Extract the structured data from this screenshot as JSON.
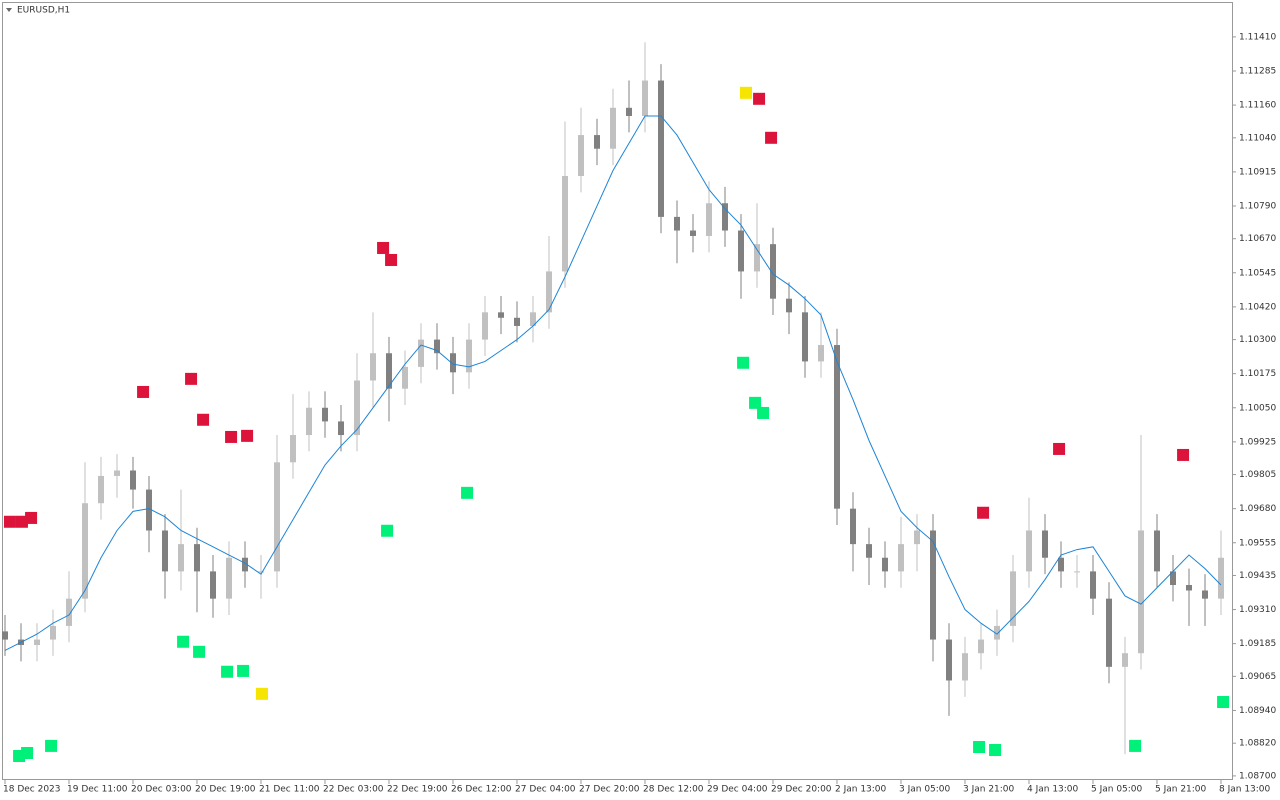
{
  "chart_data": {
    "type": "candlestick",
    "title": "EURUSD,H1",
    "categories": [
      "18 Dec 2023",
      null,
      null,
      null,
      "19 Dec 11:00",
      null,
      null,
      null,
      "20 Dec 03:00",
      null,
      null,
      null,
      "20 Dec 19:00",
      null,
      null,
      null,
      "21 Dec 11:00",
      null,
      null,
      null,
      "22 Dec 03:00",
      null,
      null,
      null,
      "22 Dec 19:00",
      null,
      null,
      null,
      "26 Dec 12:00",
      null,
      null,
      null,
      "27 Dec 04:00",
      null,
      null,
      null,
      "27 Dec 20:00",
      null,
      null,
      null,
      "28 Dec 12:00",
      null,
      null,
      null,
      "29 Dec 04:00",
      null,
      null,
      null,
      "29 Dec 20:00",
      null,
      null,
      null,
      "2 Jan 13:00",
      null,
      null,
      null,
      "3 Jan 05:00",
      null,
      null,
      null,
      "3 Jan 21:00",
      null,
      null,
      null,
      "4 Jan 13:00",
      null,
      null,
      null,
      "5 Jan 05:00",
      null,
      null,
      null,
      "5 Jan 21:00",
      null,
      null,
      null,
      "8 Jan 13:00"
    ],
    "open": [
      1.0923,
      1.092,
      1.0918,
      1.092,
      1.0925,
      1.0935,
      1.097,
      1.098,
      1.0982,
      1.0975,
      1.096,
      1.0945,
      1.0955,
      1.0945,
      1.0935,
      1.095,
      1.0945,
      1.0945,
      1.0985,
      1.0995,
      1.1005,
      1.1,
      1.0995,
      1.1015,
      1.1025,
      1.1012,
      1.102,
      1.103,
      1.1025,
      1.1018,
      1.103,
      1.104,
      1.1038,
      1.1035,
      1.104,
      1.1055,
      1.109,
      1.1105,
      1.11,
      1.1115,
      1.1112,
      1.1125,
      1.1075,
      1.107,
      1.1068,
      1.108,
      1.107,
      1.1055,
      1.1065,
      1.1045,
      1.104,
      1.1022,
      1.1028,
      1.0968,
      1.0955,
      1.095,
      1.0945,
      1.0955,
      1.096,
      1.092,
      1.0905,
      1.0915,
      1.092,
      1.0925,
      1.0945,
      1.096,
      1.095,
      1.0945,
      1.0945,
      1.0935,
      1.091,
      1.0915,
      1.096,
      1.0945,
      1.094,
      1.0938,
      1.0935
    ],
    "high": [
      1.0929,
      1.0926,
      1.0926,
      1.0931,
      1.0945,
      1.0985,
      1.0987,
      1.0988,
      1.0987,
      1.098,
      1.0966,
      1.0975,
      1.0961,
      1.0951,
      1.0956,
      1.0956,
      1.0951,
      1.0995,
      1.101,
      1.1011,
      1.1011,
      1.1006,
      1.1025,
      1.104,
      1.1031,
      1.1026,
      1.1036,
      1.1036,
      1.1031,
      1.1036,
      1.1046,
      1.1046,
      1.1044,
      1.1046,
      1.1068,
      1.111,
      1.1115,
      1.1111,
      1.1122,
      1.1125,
      1.1139,
      1.1131,
      1.1081,
      1.1076,
      1.1088,
      1.1086,
      1.1076,
      1.108,
      1.1071,
      1.1051,
      1.1046,
      1.104,
      1.1034,
      1.0974,
      1.0961,
      1.0956,
      1.0965,
      1.0966,
      1.0966,
      1.0926,
      1.0921,
      1.0926,
      1.0931,
      1.0951,
      1.0972,
      1.0966,
      1.0956,
      1.0951,
      1.0951,
      1.0941,
      1.0921,
      1.0995,
      1.0966,
      1.0951,
      1.0946,
      1.0944,
      1.096
    ],
    "low": [
      1.0914,
      1.0912,
      1.0912,
      1.0914,
      1.0919,
      1.093,
      1.0964,
      1.0972,
      1.0968,
      1.0952,
      1.0935,
      1.0938,
      1.093,
      1.0928,
      1.0929,
      1.0939,
      1.0935,
      1.0939,
      1.0979,
      1.0989,
      1.0994,
      1.0989,
      1.0989,
      1.1005,
      1.1,
      1.1006,
      1.1014,
      1.1019,
      1.101,
      1.1012,
      1.1024,
      1.1032,
      1.1029,
      1.1029,
      1.1034,
      1.1049,
      1.1084,
      1.1094,
      1.1094,
      1.1106,
      1.1106,
      1.1069,
      1.1058,
      1.1062,
      1.1062,
      1.1064,
      1.1045,
      1.1049,
      1.1039,
      1.1032,
      1.1016,
      1.1016,
      1.0962,
      1.0945,
      1.094,
      1.0939,
      1.0939,
      1.0945,
      1.0912,
      1.0892,
      1.0899,
      1.0909,
      1.0914,
      1.0919,
      1.0939,
      1.0944,
      1.0939,
      1.0939,
      1.0929,
      1.0904,
      1.0878,
      1.0909,
      1.0939,
      1.0934,
      1.0925,
      1.0925,
      1.0929
    ],
    "close": [
      1.092,
      1.0918,
      1.092,
      1.0925,
      1.0935,
      1.097,
      1.098,
      1.0982,
      1.0975,
      1.096,
      1.0945,
      1.0955,
      1.0945,
      1.0935,
      1.095,
      1.0945,
      1.0945,
      1.0985,
      1.0995,
      1.1005,
      1.1,
      1.0995,
      1.1015,
      1.1025,
      1.1012,
      1.102,
      1.103,
      1.1025,
      1.1018,
      1.103,
      1.104,
      1.1038,
      1.1035,
      1.104,
      1.1055,
      1.109,
      1.1105,
      1.11,
      1.1115,
      1.1112,
      1.1125,
      1.1075,
      1.107,
      1.1068,
      1.108,
      1.107,
      1.1055,
      1.1065,
      1.1045,
      1.104,
      1.1022,
      1.1028,
      1.0968,
      1.0955,
      1.095,
      1.0945,
      1.0955,
      1.096,
      1.092,
      1.0905,
      1.0915,
      1.092,
      1.0925,
      1.0945,
      1.096,
      1.095,
      1.0945,
      1.0945,
      1.0935,
      1.091,
      1.0915,
      1.096,
      1.0945,
      1.094,
      1.0938,
      1.0935,
      1.095
    ],
    "up_color": "#c0c0c0",
    "down_color": "#808080",
    "ma": {
      "color": "#1e84d6",
      "values": [
        1.0916,
        1.0919,
        1.0922,
        1.0926,
        1.0929,
        1.0938,
        1.095,
        1.096,
        1.0967,
        1.0968,
        1.0965,
        1.096,
        1.0957,
        1.0954,
        1.0951,
        1.0948,
        1.0944,
        1.0954,
        1.0964,
        1.0974,
        1.0984,
        1.0991,
        1.0997,
        1.1005,
        1.1013,
        1.1021,
        1.1028,
        1.1026,
        1.1021,
        1.102,
        1.1022,
        1.1026,
        1.103,
        1.1035,
        1.1041,
        1.1053,
        1.1066,
        1.1079,
        1.1092,
        1.1102,
        1.1112,
        1.1112,
        1.1105,
        1.1095,
        1.1085,
        1.1078,
        1.1072,
        1.1063,
        1.1054,
        1.105,
        1.1045,
        1.1039,
        1.1022,
        1.1008,
        1.0993,
        1.098,
        1.0967,
        1.0961,
        1.0956,
        1.0943,
        1.0931,
        1.0926,
        1.0922,
        1.0928,
        1.0934,
        1.0942,
        1.0951,
        1.0953,
        1.0954,
        1.0945,
        1.0936,
        1.0933,
        1.0939,
        1.0945,
        1.0951,
        1.0946,
        1.094
      ]
    },
    "markers": [
      {
        "color": "#dc143c",
        "x": [
          0.31,
          1.06,
          1.63,
          8.63,
          11.63,
          12.38,
          14.13,
          15.13,
          23.63,
          24.13,
          47.13,
          47.88,
          61.13,
          65.88,
          73.63
        ],
        "y": [
          1.09632,
          1.09632,
          1.09646,
          1.10108,
          1.10156,
          1.10006,
          1.09943,
          1.09947,
          1.10636,
          1.10592,
          1.11183,
          1.1104,
          1.09665,
          1.09899,
          1.09877
        ]
      },
      {
        "color": "#00f07a",
        "x": [
          0.88,
          1.38,
          2.88,
          11.13,
          12.13,
          13.88,
          14.88,
          23.88,
          28.88,
          46.13,
          46.88,
          47.38,
          60.88,
          61.88,
          70.63,
          76.13
        ],
        "y": [
          1.08773,
          1.08784,
          1.0881,
          1.09192,
          1.09155,
          1.09082,
          1.09085,
          1.09599,
          1.09738,
          1.10215,
          1.10068,
          1.10031,
          1.08806,
          1.08795,
          1.0881,
          1.08971
        ]
      },
      {
        "color": "#f5e500",
        "x": [
          16.06,
          46.31
        ],
        "y": [
          1.09001,
          1.11205
        ]
      }
    ],
    "ylim": [
      1.08685,
      1.11538
    ],
    "yticks": [
      {
        "value": 1.1141,
        "label": "1.11410"
      },
      1.11285,
      {
        "value": 1.1116,
        "label": "1.11160"
      },
      {
        "value": 1.1104,
        "label": "1.11040"
      },
      1.10915,
      {
        "value": 1.1079,
        "label": "1.10790"
      },
      {
        "value": 1.1067,
        "label": "1.10670"
      },
      1.10545,
      {
        "value": 1.1042,
        "label": "1.10420"
      },
      {
        "value": 1.103,
        "label": "1.10300"
      },
      1.10175,
      {
        "value": 1.1005,
        "label": "1.10050"
      },
      1.09925,
      1.09805,
      {
        "value": 1.0968,
        "label": "1.09680"
      },
      1.09555,
      1.09435,
      {
        "value": 1.0931,
        "label": "1.09310"
      },
      1.09185,
      1.09065,
      {
        "value": 1.0894,
        "label": "1.08940"
      },
      {
        "value": 1.0882,
        "label": "1.08820"
      },
      {
        "value": 1.087,
        "label": "1.08700"
      }
    ]
  }
}
